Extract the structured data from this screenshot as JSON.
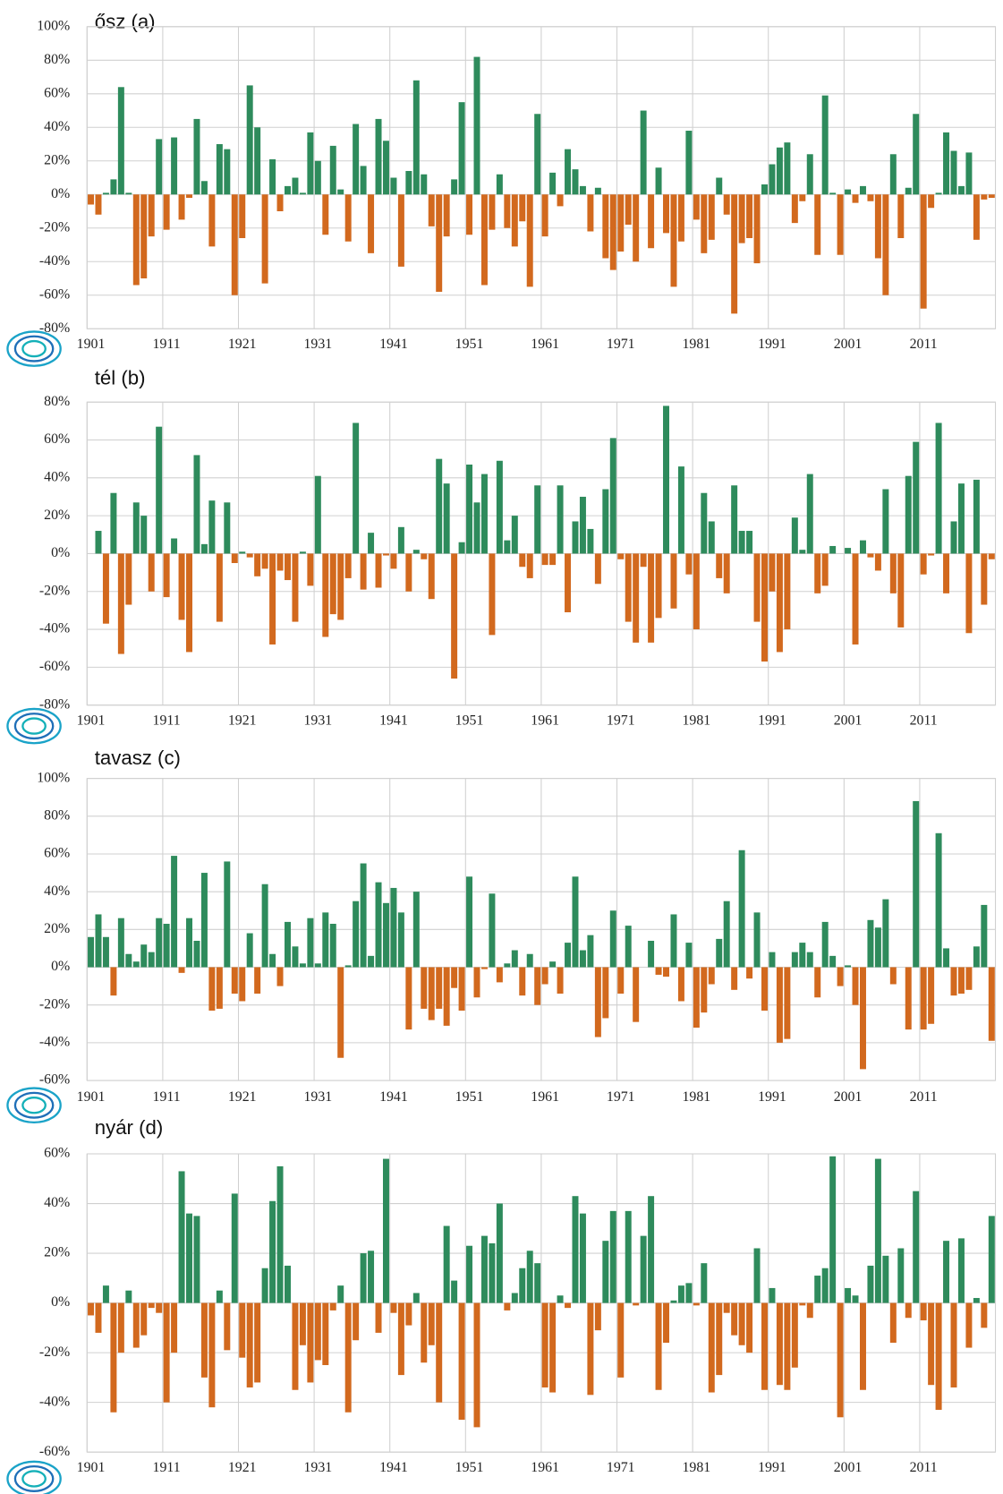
{
  "chart_data": [
    {
      "type": "bar",
      "title": "ősz (a)",
      "x": [
        1901,
        1902,
        1903,
        1904,
        1905,
        1906,
        1907,
        1908,
        1909,
        1910,
        1911,
        1912,
        1913,
        1914,
        1915,
        1916,
        1917,
        1918,
        1919,
        1920,
        1921,
        1922,
        1923,
        1924,
        1925,
        1926,
        1927,
        1928,
        1929,
        1930,
        1931,
        1932,
        1933,
        1934,
        1935,
        1936,
        1937,
        1938,
        1939,
        1940,
        1941,
        1942,
        1943,
        1944,
        1945,
        1946,
        1947,
        1948,
        1949,
        1950,
        1951,
        1952,
        1953,
        1954,
        1955,
        1956,
        1957,
        1958,
        1959,
        1960,
        1961,
        1962,
        1963,
        1964,
        1965,
        1966,
        1967,
        1968,
        1969,
        1970,
        1971,
        1972,
        1973,
        1974,
        1975,
        1976,
        1977,
        1978,
        1979,
        1980,
        1981,
        1982,
        1983,
        1984,
        1985,
        1986,
        1987,
        1988,
        1989,
        1990,
        1991,
        1992,
        1993,
        1994,
        1995,
        1996,
        1997,
        1998,
        1999,
        2000,
        2001,
        2002,
        2003,
        2004,
        2005,
        2006,
        2007,
        2008,
        2009,
        2010,
        2011,
        2012,
        2013,
        2014,
        2015,
        2016,
        2017,
        2018,
        2019,
        2020
      ],
      "values": [
        -6,
        -12,
        1,
        9,
        64,
        1,
        -54,
        -50,
        -25,
        33,
        -21,
        34,
        -15,
        -2,
        45,
        8,
        -31,
        30,
        27,
        -60,
        -26,
        65,
        40,
        -53,
        21,
        -10,
        5,
        10,
        1,
        37,
        20,
        -24,
        29,
        3,
        -28,
        42,
        17,
        -35,
        45,
        32,
        10,
        -43,
        14,
        68,
        12,
        -19,
        -58,
        -25,
        9,
        55,
        -24,
        82,
        -54,
        -21,
        12,
        -20,
        -31,
        -16,
        -55,
        48,
        -25,
        13,
        -7,
        27,
        15,
        5,
        -22,
        4,
        -38,
        -45,
        -34,
        -18,
        -40,
        50,
        -32,
        16,
        -23,
        -55,
        -28,
        38,
        -15,
        -35,
        -27,
        10,
        -12,
        -71,
        -29,
        -26,
        -41,
        6,
        18,
        28,
        31,
        -17,
        -4,
        24,
        -36,
        59,
        1,
        -36,
        3,
        -5,
        5,
        -4,
        -38,
        -60,
        24,
        -26,
        4,
        48,
        -68,
        -8,
        1,
        37,
        26,
        5,
        25,
        -27,
        -3,
        -2
      ],
      "xlim": [
        1900.5,
        2020.5
      ],
      "xticks": [
        1901,
        1911,
        1921,
        1931,
        1941,
        1951,
        1961,
        1971,
        1981,
        1991,
        2001,
        2011
      ],
      "ylim": [
        -80,
        100
      ],
      "yticks": [
        {
          "value": -80,
          "label": "-80%"
        },
        {
          "value": -60,
          "label": "-60%"
        },
        {
          "value": -40,
          "label": "-40%"
        },
        {
          "value": -20,
          "label": "-20%"
        },
        {
          "value": 0,
          "label": "0%"
        },
        {
          "value": 20,
          "label": "20%"
        },
        {
          "value": 40,
          "label": "40%"
        },
        {
          "value": 60,
          "label": "60%"
        },
        {
          "value": 80,
          "label": "80%"
        },
        {
          "value": 100,
          "label": "100%"
        }
      ],
      "positive_color": "#2e8b5c",
      "negative_color": "#d2691e",
      "grid": true
    },
    {
      "type": "bar",
      "title": "tél (b)",
      "x": [
        1901,
        1902,
        1903,
        1904,
        1905,
        1906,
        1907,
        1908,
        1909,
        1910,
        1911,
        1912,
        1913,
        1914,
        1915,
        1916,
        1917,
        1918,
        1919,
        1920,
        1921,
        1922,
        1923,
        1924,
        1925,
        1926,
        1927,
        1928,
        1929,
        1930,
        1931,
        1932,
        1933,
        1934,
        1935,
        1936,
        1937,
        1938,
        1939,
        1940,
        1941,
        1942,
        1943,
        1944,
        1945,
        1946,
        1947,
        1948,
        1949,
        1950,
        1951,
        1952,
        1953,
        1954,
        1955,
        1956,
        1957,
        1958,
        1959,
        1960,
        1961,
        1962,
        1963,
        1964,
        1965,
        1966,
        1967,
        1968,
        1969,
        1970,
        1971,
        1972,
        1973,
        1974,
        1975,
        1976,
        1977,
        1978,
        1979,
        1980,
        1981,
        1982,
        1983,
        1984,
        1985,
        1986,
        1987,
        1988,
        1989,
        1990,
        1991,
        1992,
        1993,
        1994,
        1995,
        1996,
        1997,
        1998,
        1999,
        2000,
        2001,
        2002,
        2003,
        2004,
        2005,
        2006,
        2007,
        2008,
        2009,
        2010,
        2011,
        2012,
        2013,
        2014,
        2015,
        2016,
        2017,
        2018,
        2019,
        2020
      ],
      "values": [
        0,
        12,
        -37,
        32,
        -53,
        -27,
        27,
        20,
        -20,
        67,
        -23,
        8,
        -35,
        -52,
        52,
        5,
        28,
        -36,
        27,
        -5,
        1,
        -2,
        -12,
        -8,
        -48,
        -9,
        -14,
        -36,
        1,
        -17,
        41,
        -44,
        -32,
        -35,
        -13,
        69,
        -19,
        11,
        -18,
        -1,
        -8,
        14,
        -20,
        2,
        -3,
        -24,
        50,
        37,
        -66,
        6,
        47,
        27,
        42,
        -43,
        49,
        7,
        20,
        -7,
        -13,
        36,
        -6,
        -6,
        36,
        -31,
        17,
        30,
        13,
        -16,
        34,
        61,
        -3,
        -36,
        -47,
        -7,
        -47,
        -34,
        78,
        -29,
        46,
        -11,
        -40,
        32,
        17,
        -13,
        -21,
        36,
        12,
        12,
        -36,
        -57,
        -20,
        -52,
        -40,
        19,
        2,
        42,
        -21,
        -17,
        4,
        0,
        3,
        -48,
        7,
        -2,
        -9,
        34,
        -21,
        -39,
        41,
        59,
        -11,
        -1,
        69,
        -21,
        17,
        37,
        -42,
        39,
        -27,
        -3
      ],
      "xlim": [
        1900.5,
        2020.5
      ],
      "xticks": [
        1901,
        1911,
        1921,
        1931,
        1941,
        1951,
        1961,
        1971,
        1981,
        1991,
        2001,
        2011
      ],
      "ylim": [
        -80,
        80
      ],
      "yticks": [
        {
          "value": -80,
          "label": "-80%"
        },
        {
          "value": -60,
          "label": "-60%"
        },
        {
          "value": -40,
          "label": "-40%"
        },
        {
          "value": -20,
          "label": "-20%"
        },
        {
          "value": 0,
          "label": "0%"
        },
        {
          "value": 20,
          "label": "20%"
        },
        {
          "value": 40,
          "label": "40%"
        },
        {
          "value": 60,
          "label": "60%"
        },
        {
          "value": 80,
          "label": "80%"
        }
      ],
      "positive_color": "#2e8b5c",
      "negative_color": "#d2691e",
      "grid": true
    },
    {
      "type": "bar",
      "title": "tavasz (c)",
      "x": [
        1901,
        1902,
        1903,
        1904,
        1905,
        1906,
        1907,
        1908,
        1909,
        1910,
        1911,
        1912,
        1913,
        1914,
        1915,
        1916,
        1917,
        1918,
        1919,
        1920,
        1921,
        1922,
        1923,
        1924,
        1925,
        1926,
        1927,
        1928,
        1929,
        1930,
        1931,
        1932,
        1933,
        1934,
        1935,
        1936,
        1937,
        1938,
        1939,
        1940,
        1941,
        1942,
        1943,
        1944,
        1945,
        1946,
        1947,
        1948,
        1949,
        1950,
        1951,
        1952,
        1953,
        1954,
        1955,
        1956,
        1957,
        1958,
        1959,
        1960,
        1961,
        1962,
        1963,
        1964,
        1965,
        1966,
        1967,
        1968,
        1969,
        1970,
        1971,
        1972,
        1973,
        1974,
        1975,
        1976,
        1977,
        1978,
        1979,
        1980,
        1981,
        1982,
        1983,
        1984,
        1985,
        1986,
        1987,
        1988,
        1989,
        1990,
        1991,
        1992,
        1993,
        1994,
        1995,
        1996,
        1997,
        1998,
        1999,
        2000,
        2001,
        2002,
        2003,
        2004,
        2005,
        2006,
        2007,
        2008,
        2009,
        2010,
        2011,
        2012,
        2013,
        2014,
        2015,
        2016,
        2017,
        2018,
        2019,
        2020
      ],
      "values": [
        16,
        28,
        16,
        -15,
        26,
        7,
        3,
        12,
        8,
        26,
        23,
        59,
        -3,
        26,
        14,
        50,
        -23,
        -22,
        56,
        -14,
        -18,
        18,
        -14,
        44,
        7,
        -10,
        24,
        11,
        2,
        26,
        2,
        29,
        23,
        -48,
        1,
        35,
        55,
        6,
        45,
        34,
        42,
        29,
        -33,
        40,
        -22,
        -28,
        -22,
        -31,
        -11,
        -23,
        48,
        -16,
        -1,
        39,
        -8,
        2,
        9,
        -15,
        7,
        -20,
        -9,
        3,
        -14,
        13,
        48,
        9,
        17,
        -37,
        -27,
        30,
        -14,
        22,
        -29,
        0,
        14,
        -4,
        -5,
        28,
        -18,
        13,
        -32,
        -24,
        -9,
        15,
        35,
        -12,
        62,
        -6,
        29,
        -23,
        8,
        -40,
        -38,
        8,
        13,
        8,
        -16,
        24,
        6,
        -10,
        1,
        -20,
        -54,
        25,
        21,
        36,
        -9,
        0,
        -33,
        88,
        -33,
        -30,
        71,
        10,
        -15,
        -14,
        -12,
        11,
        33,
        -39
      ],
      "xlim": [
        1900.5,
        2020.5
      ],
      "xticks": [
        1901,
        1911,
        1921,
        1931,
        1941,
        1951,
        1961,
        1971,
        1981,
        1991,
        2001,
        2011
      ],
      "ylim": [
        -60,
        100
      ],
      "yticks": [
        {
          "value": -60,
          "label": "-60%"
        },
        {
          "value": -40,
          "label": "-40%"
        },
        {
          "value": -20,
          "label": "-20%"
        },
        {
          "value": 0,
          "label": "0%"
        },
        {
          "value": 20,
          "label": "20%"
        },
        {
          "value": 40,
          "label": "40%"
        },
        {
          "value": 60,
          "label": "60%"
        },
        {
          "value": 80,
          "label": "80%"
        },
        {
          "value": 100,
          "label": "100%"
        }
      ],
      "positive_color": "#2e8b5c",
      "negative_color": "#d2691e",
      "grid": true
    },
    {
      "type": "bar",
      "title": "nyár (d)",
      "x": [
        1901,
        1902,
        1903,
        1904,
        1905,
        1906,
        1907,
        1908,
        1909,
        1910,
        1911,
        1912,
        1913,
        1914,
        1915,
        1916,
        1917,
        1918,
        1919,
        1920,
        1921,
        1922,
        1923,
        1924,
        1925,
        1926,
        1927,
        1928,
        1929,
        1930,
        1931,
        1932,
        1933,
        1934,
        1935,
        1936,
        1937,
        1938,
        1939,
        1940,
        1941,
        1942,
        1943,
        1944,
        1945,
        1946,
        1947,
        1948,
        1949,
        1950,
        1951,
        1952,
        1953,
        1954,
        1955,
        1956,
        1957,
        1958,
        1959,
        1960,
        1961,
        1962,
        1963,
        1964,
        1965,
        1966,
        1967,
        1968,
        1969,
        1970,
        1971,
        1972,
        1973,
        1974,
        1975,
        1976,
        1977,
        1978,
        1979,
        1980,
        1981,
        1982,
        1983,
        1984,
        1985,
        1986,
        1987,
        1988,
        1989,
        1990,
        1991,
        1992,
        1993,
        1994,
        1995,
        1996,
        1997,
        1998,
        1999,
        2000,
        2001,
        2002,
        2003,
        2004,
        2005,
        2006,
        2007,
        2008,
        2009,
        2010,
        2011,
        2012,
        2013,
        2014,
        2015,
        2016,
        2017,
        2018,
        2019,
        2020
      ],
      "values": [
        -5,
        -12,
        7,
        -44,
        -20,
        5,
        -18,
        -13,
        -2,
        -4,
        -40,
        -20,
        53,
        36,
        35,
        -30,
        -42,
        5,
        -19,
        44,
        -22,
        -34,
        -32,
        14,
        41,
        55,
        15,
        -35,
        -17,
        -32,
        -23,
        -25,
        -3,
        7,
        -44,
        -15,
        20,
        21,
        -12,
        58,
        -4,
        -29,
        -9,
        4,
        -24,
        -17,
        -40,
        31,
        9,
        -47,
        23,
        -50,
        27,
        24,
        40,
        -3,
        4,
        14,
        21,
        16,
        -34,
        -36,
        3,
        -2,
        43,
        36,
        -37,
        -11,
        25,
        37,
        -30,
        37,
        -1,
        27,
        43,
        -35,
        -16,
        1,
        7,
        8,
        -1,
        16,
        -36,
        -29,
        -4,
        -13,
        -17,
        -20,
        22,
        -35,
        6,
        -33,
        -35,
        -26,
        -1,
        -6,
        11,
        14,
        59,
        -46,
        6,
        3,
        -35,
        15,
        58,
        19,
        -16,
        22,
        -6,
        45,
        -7,
        -33,
        -43,
        25,
        -34,
        26,
        -18,
        2,
        -10,
        35
      ],
      "xlim": [
        1900.5,
        2020.5
      ],
      "xticks": [
        1901,
        1911,
        1921,
        1931,
        1941,
        1951,
        1961,
        1971,
        1981,
        1991,
        2001,
        2011
      ],
      "ylim": [
        -60,
        60
      ],
      "yticks": [
        {
          "value": -60,
          "label": "-60%"
        },
        {
          "value": -40,
          "label": "-40%"
        },
        {
          "value": -20,
          "label": "-20%"
        },
        {
          "value": 0,
          "label": "0%"
        },
        {
          "value": 20,
          "label": "20%"
        },
        {
          "value": 40,
          "label": "40%"
        },
        {
          "value": 60,
          "label": "60%"
        }
      ],
      "positive_color": "#2e8b5c",
      "negative_color": "#d2691e",
      "grid": true
    }
  ]
}
